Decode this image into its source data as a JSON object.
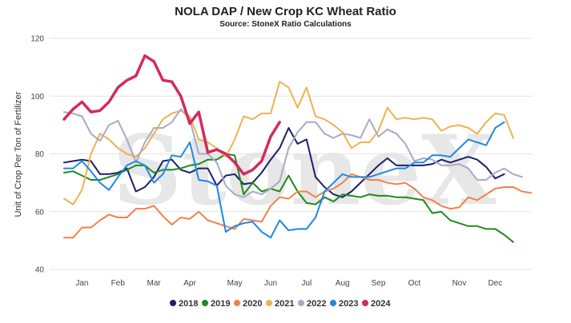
{
  "chart_data": {
    "type": "line",
    "title": "NOLA DAP / New Crop KC Wheat Ratio",
    "subtitle": "Source: StoneX Ratio Calculations",
    "ylabel": "Unit of Crop Per Ton of Fertilizer",
    "xlabel": "",
    "ylim": [
      40,
      120
    ],
    "yticks": [
      40,
      60,
      80,
      100,
      120
    ],
    "x_axis": "week of year",
    "xlim": [
      1,
      52
    ],
    "month_labels": [
      "Jan",
      "Feb",
      "Mar",
      "Apr",
      "May",
      "Jun",
      "Jul",
      "Aug",
      "Sep",
      "Oct",
      "Nov",
      "Dec"
    ],
    "month_label_weeks": [
      3,
      7,
      11,
      15,
      20,
      24,
      28,
      32,
      36,
      40,
      45,
      49
    ],
    "grid": "horizontal",
    "legend": "bottom",
    "watermark": "StoneX",
    "series": [
      {
        "name": "2018",
        "color": "#1b1f6b",
        "values": [
          77,
          77.5,
          78,
          77.5,
          73,
          73,
          73.5,
          75,
          67,
          68.5,
          72,
          77.5,
          78,
          74.5,
          73.5,
          75,
          75,
          69,
          72.5,
          73,
          69.5,
          70,
          73.5,
          78,
          82,
          89,
          83.5,
          85,
          72,
          68.5,
          66,
          65,
          67,
          70,
          73,
          76,
          78.5,
          76,
          76,
          76,
          76,
          76.5,
          78,
          77,
          78,
          79,
          78,
          75.5,
          71.5,
          73
        ]
      },
      {
        "name": "2019",
        "color": "#1e8a1e",
        "values": [
          73.5,
          74,
          72.5,
          71,
          71,
          72,
          73,
          74.5,
          76,
          76,
          73.5,
          74.5,
          74.5,
          75,
          76,
          76.5,
          78,
          78,
          80,
          79.5,
          66,
          70,
          67,
          68,
          67,
          72.5,
          67,
          63,
          62.5,
          65,
          63.5,
          66,
          65.5,
          65,
          66,
          65.5,
          65.5,
          65,
          65,
          64.5,
          64,
          59.5,
          60,
          57,
          56,
          55,
          55,
          54,
          54,
          52,
          49.5
        ]
      },
      {
        "name": "2020",
        "color": "#f0824a",
        "values": [
          51,
          51,
          54.5,
          54.5,
          57,
          59,
          58,
          58,
          61,
          61,
          62,
          58.5,
          55.5,
          58,
          57.5,
          60,
          57,
          56,
          55,
          54,
          57.5,
          57,
          56.5,
          62,
          65,
          64.5,
          67,
          67,
          65,
          67,
          68,
          70,
          73,
          72,
          71,
          71,
          70,
          69.5,
          70,
          68,
          65,
          64,
          62,
          61,
          61.5,
          65,
          64,
          66,
          68,
          68.5,
          68.5,
          67,
          66.5
        ]
      },
      {
        "name": "2021",
        "color": "#f0b24c",
        "values": [
          64.5,
          62.5,
          67.5,
          80,
          87,
          85,
          82,
          80,
          79,
          82,
          87,
          92,
          94,
          95,
          93,
          85,
          84,
          82,
          79,
          85,
          93,
          92,
          94,
          94,
          105,
          103,
          96,
          103,
          93,
          92,
          90,
          87.5,
          82,
          84,
          84,
          88,
          96,
          92,
          92.5,
          92,
          92.5,
          92,
          88,
          89.5,
          90,
          89,
          87,
          91,
          94,
          93.5,
          85.5
        ]
      },
      {
        "name": "2022",
        "color": "#a9a9c8",
        "values": [
          94.5,
          94,
          93,
          87,
          84.5,
          90,
          91.5,
          85,
          77,
          84,
          89,
          89,
          91,
          95.5,
          92,
          80,
          80,
          77,
          69,
          66,
          65,
          67,
          66,
          68,
          70.5,
          82,
          87.5,
          91,
          91,
          87,
          85.5,
          87,
          86.5,
          85.5,
          92,
          86,
          88.5,
          87,
          83.5,
          77.5,
          78.5,
          78,
          76,
          76,
          76.5,
          75,
          71,
          71,
          73.5,
          75,
          73,
          72
        ]
      },
      {
        "name": "2023",
        "color": "#1e88e5",
        "values": [
          75,
          75,
          77.5,
          74,
          70,
          67.5,
          72,
          76,
          77.5,
          76,
          70,
          73,
          79.5,
          79,
          84,
          71,
          70.5,
          69,
          53,
          55,
          56,
          56.5,
          53,
          51,
          57,
          53.5,
          54,
          54,
          58,
          67,
          70,
          73,
          72,
          72,
          72,
          73,
          74,
          75,
          75,
          77,
          77,
          79.5,
          79.5,
          79,
          82,
          85,
          84,
          83,
          89,
          91
        ]
      },
      {
        "name": "2024",
        "color": "#d42a5c",
        "values": [
          92,
          95.5,
          98,
          94.5,
          95,
          98,
          103,
          105.5,
          107,
          114,
          112,
          105.5,
          105,
          100,
          90.5,
          94.5,
          80.5,
          81.5,
          80,
          77,
          73,
          74.5,
          77.5,
          86,
          91
        ]
      }
    ]
  }
}
